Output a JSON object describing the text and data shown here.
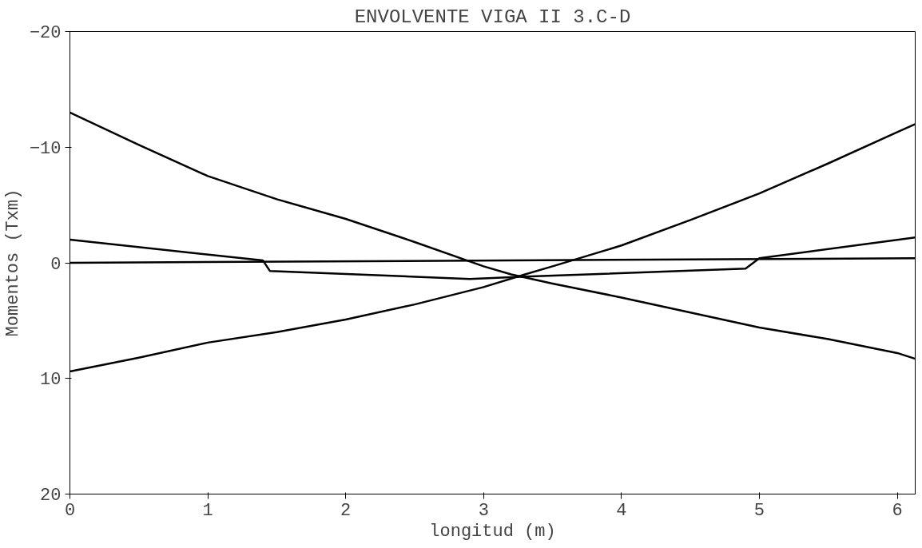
{
  "chart_data": {
    "type": "line",
    "title": "ENVOLVENTE VIGA II 3.C-D",
    "xlabel": "longitud (m)",
    "ylabel": "Momentos (Txm)",
    "xlim": [
      0,
      6.13
    ],
    "xticks": [
      0,
      1,
      2,
      3,
      4,
      5,
      6
    ],
    "ylim": [
      20,
      -20
    ],
    "yticks": [
      -20,
      -10,
      0,
      10,
      20
    ],
    "grid": false,
    "marker": "none",
    "line_style": "solid",
    "series": [
      {
        "color": "#000000",
        "x": [
          0,
          0.5,
          1,
          1.5,
          2,
          2.5,
          3,
          3.2,
          3.5,
          4,
          4.5,
          5,
          5.5,
          6,
          6.13
        ],
        "values": [
          -13,
          -10.2,
          -7.5,
          -5.5,
          -3.8,
          -1.8,
          0.3,
          1,
          1.8,
          3,
          4.3,
          5.6,
          6.6,
          7.8,
          8.3
        ]
      },
      {
        "color": "#000000",
        "x": [
          0,
          0.5,
          1,
          1.5,
          2,
          2.5,
          3,
          3.3,
          3.5,
          4,
          4.5,
          5,
          5.5,
          6,
          6.13
        ],
        "values": [
          9.4,
          8.2,
          6.9,
          6,
          4.9,
          3.6,
          2.1,
          1,
          0.3,
          -1.5,
          -3.7,
          -6,
          -8.6,
          -11.3,
          -12
        ]
      },
      {
        "color": "#000000",
        "x": [
          0,
          1.4,
          1.45,
          2.9,
          3.3,
          4.9,
          5,
          6.13
        ],
        "values": [
          -2,
          -0.2,
          0.7,
          1.4,
          1.2,
          0.5,
          -0.4,
          -2.2
        ]
      },
      {
        "color": "#000000",
        "x": [
          0,
          6.13
        ],
        "values": [
          0,
          -0.4
        ]
      }
    ]
  }
}
